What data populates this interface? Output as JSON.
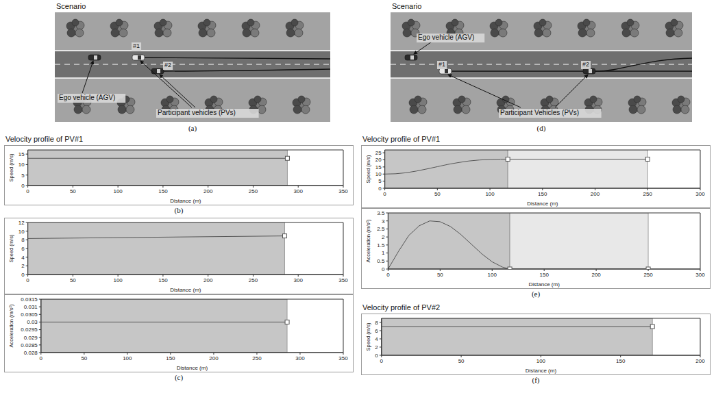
{
  "scenarios": [
    {
      "heading": "Scenario",
      "ego_label": "Ego vehicle (AGV)",
      "pv_label": "Participant vehicles (PVs)",
      "vehicle_labels": [
        "#1",
        "#2"
      ],
      "caption": "(a)"
    },
    {
      "heading": "Scenario",
      "ego_label": "Ego vehicle (AGV)",
      "pv_label": "Participant Vehicles (PVs)",
      "vehicle_labels": [
        "#1",
        "#2"
      ],
      "caption": "(d)"
    }
  ],
  "chart_data": [
    {
      "type": "line",
      "title": "Velocity profile of PV#1",
      "x_label": "Distance (m)",
      "y_label": "Speed (m/s)",
      "x": [
        0,
        288
      ],
      "values": [
        13,
        13
      ],
      "xlim": [
        0,
        350
      ],
      "xticks": [
        0,
        50,
        100,
        150,
        200,
        250,
        300,
        350
      ],
      "ylim": [
        0,
        17
      ],
      "yticks": [
        0,
        5,
        10,
        15
      ],
      "segment_ends": [
        288
      ],
      "marker": "square",
      "color": "#555555",
      "caption": "(b)"
    },
    {
      "type": "line",
      "x_label": "Distance (m)",
      "y_label": "Speed (m/s)",
      "x": [
        0,
        285
      ],
      "values": [
        8.3,
        8.9
      ],
      "xlim": [
        0,
        350
      ],
      "xticks": [
        0,
        50,
        100,
        150,
        200,
        250,
        300,
        350
      ],
      "ylim": [
        0,
        12
      ],
      "yticks": [
        0,
        2,
        4,
        6,
        8,
        10,
        12
      ],
      "segment_ends": [
        285
      ],
      "marker": "square",
      "color": "#555555"
    },
    {
      "type": "line",
      "x_label": "Distance (m)",
      "y_label": "Acceleration (m/s²)",
      "x": [
        0,
        285
      ],
      "values": [
        0.03,
        0.03
      ],
      "xlim": [
        0,
        350
      ],
      "xticks": [
        0,
        50,
        100,
        150,
        200,
        250,
        300,
        350
      ],
      "ylim": [
        0.028,
        0.0315
      ],
      "yticks": [
        0.028,
        0.0285,
        0.029,
        0.0295,
        0.03,
        0.0305,
        0.031,
        0.0315
      ],
      "segment_ends": [
        285
      ],
      "marker": "square",
      "color": "#555555",
      "caption": "(c)"
    },
    {
      "type": "line",
      "title": "Velocity profile of PV#1",
      "x_label": "Distance (m)",
      "y_label": "Speed (m/s)",
      "x": [
        0,
        10,
        20,
        30,
        40,
        50,
        60,
        70,
        80,
        90,
        100,
        110,
        117,
        250
      ],
      "values": [
        10,
        10.2,
        10.9,
        12.1,
        13.6,
        15.2,
        16.8,
        18.1,
        19.2,
        19.9,
        20.3,
        20.5,
        20.5,
        20.5
      ],
      "xlim": [
        0,
        300
      ],
      "xticks": [
        0,
        50,
        100,
        150,
        200,
        250,
        300
      ],
      "ylim": [
        0,
        27
      ],
      "yticks": [
        0,
        5,
        10,
        15,
        20,
        25
      ],
      "segment_ends": [
        117,
        250
      ],
      "marker": "square",
      "color": "#555555"
    },
    {
      "type": "line",
      "x_label": "Distance (m)",
      "y_label": "Acceleration (m/s²)",
      "x": [
        0,
        10,
        20,
        30,
        40,
        50,
        60,
        70,
        80,
        90,
        100,
        110,
        117,
        250
      ],
      "values": [
        0,
        1.1,
        2.1,
        2.7,
        3.0,
        2.95,
        2.65,
        2.15,
        1.55,
        0.95,
        0.45,
        0.12,
        0,
        0
      ],
      "xlim": [
        0,
        300
      ],
      "xticks": [
        0,
        50,
        100,
        150,
        200,
        250,
        300
      ],
      "ylim": [
        0,
        3.5
      ],
      "yticks": [
        0,
        0.5,
        1,
        1.5,
        2,
        2.5,
        3,
        3.5
      ],
      "segment_ends": [
        117,
        250
      ],
      "marker": "square",
      "color": "#555555",
      "caption": "(e)"
    },
    {
      "type": "line",
      "title": "Velocity profile of PV#2",
      "x_label": "Distance (m)",
      "y_label": "Speed (m/s)",
      "x": [
        0,
        170
      ],
      "values": [
        7,
        7
      ],
      "xlim": [
        0,
        200
      ],
      "xticks": [
        0,
        50,
        100,
        150,
        200
      ],
      "ylim": [
        0,
        9
      ],
      "yticks": [
        0,
        2,
        4,
        6,
        8
      ],
      "segment_ends": [
        170
      ],
      "marker": "square",
      "color": "#555555",
      "caption": "(f)"
    }
  ]
}
